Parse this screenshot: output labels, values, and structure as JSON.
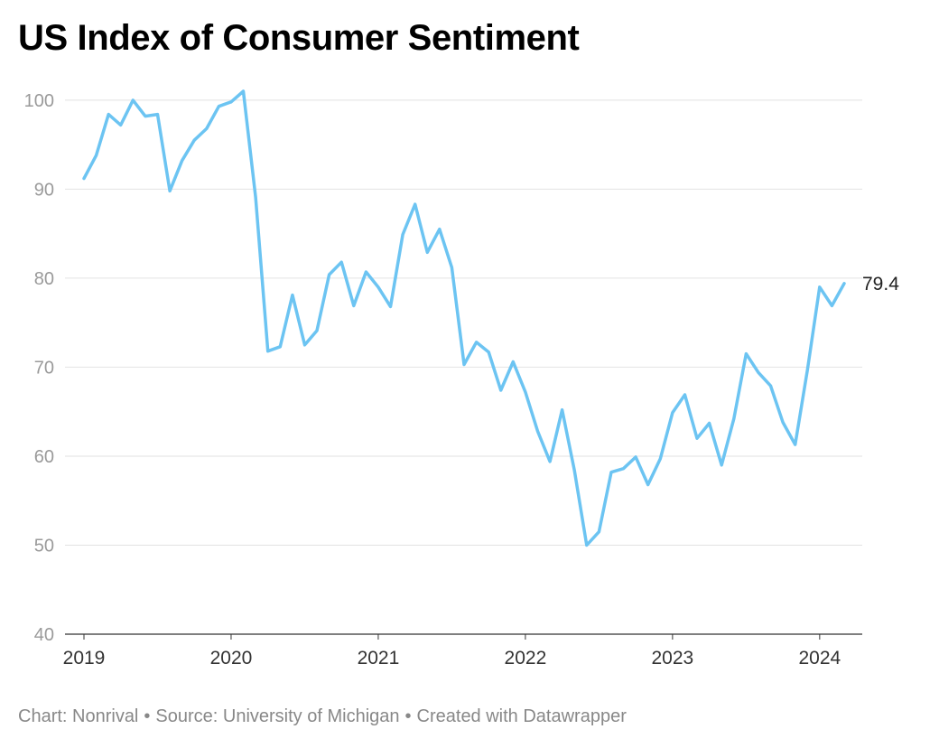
{
  "title": "US Index of Consumer Sentiment",
  "footer": {
    "chart_credit": "Chart: Nonrival",
    "source": "Source: University of Michigan",
    "created_with": "Created with Datawrapper",
    "separator": "•"
  },
  "colors": {
    "line": "#6cc4f2",
    "grid": "#e2e2e2",
    "tick_text": "#9a9a9a",
    "axis_text": "#333333",
    "end_label": "#222222"
  },
  "chart_data": {
    "type": "line",
    "title": "US Index of Consumer Sentiment",
    "xlabel": "",
    "ylabel": "",
    "ylim": [
      40,
      101
    ],
    "yticks": [
      100,
      90,
      80,
      70,
      60,
      50,
      40
    ],
    "xlim": [
      "2019-01",
      "2024-03"
    ],
    "xticks": [
      "2019",
      "2020",
      "2021",
      "2022",
      "2023",
      "2024"
    ],
    "grid": true,
    "legend": "none",
    "end_label": "79.4",
    "series": [
      {
        "x": [
          "2019-01",
          "2019-02",
          "2019-03",
          "2019-04",
          "2019-05",
          "2019-06",
          "2019-07",
          "2019-08",
          "2019-09",
          "2019-10",
          "2019-11",
          "2019-12",
          "2020-01",
          "2020-02",
          "2020-03",
          "2020-04",
          "2020-05",
          "2020-06",
          "2020-07",
          "2020-08",
          "2020-09",
          "2020-10",
          "2020-11",
          "2020-12",
          "2021-01",
          "2021-02",
          "2021-03",
          "2021-04",
          "2021-05",
          "2021-06",
          "2021-07",
          "2021-08",
          "2021-09",
          "2021-10",
          "2021-11",
          "2021-12",
          "2022-01",
          "2022-02",
          "2022-03",
          "2022-04",
          "2022-05",
          "2022-06",
          "2022-07",
          "2022-08",
          "2022-09",
          "2022-10",
          "2022-11",
          "2022-12",
          "2023-01",
          "2023-02",
          "2023-03",
          "2023-04",
          "2023-05",
          "2023-06",
          "2023-07",
          "2023-08",
          "2023-09",
          "2023-10",
          "2023-11",
          "2023-12",
          "2024-01",
          "2024-02",
          "2024-03"
        ],
        "values": [
          91.2,
          93.8,
          98.4,
          97.2,
          100.0,
          98.2,
          98.4,
          89.8,
          93.2,
          95.5,
          96.8,
          99.3,
          99.8,
          101.0,
          89.1,
          71.8,
          72.3,
          78.1,
          72.5,
          74.1,
          80.4,
          81.8,
          76.9,
          80.7,
          79.0,
          76.8,
          84.9,
          88.3,
          82.9,
          85.5,
          81.2,
          70.3,
          72.8,
          71.7,
          67.4,
          70.6,
          67.2,
          62.8,
          59.4,
          65.2,
          58.4,
          50.0,
          51.5,
          58.2,
          58.6,
          59.9,
          56.8,
          59.7,
          64.9,
          66.9,
          62.0,
          63.7,
          59.0,
          64.2,
          71.5,
          69.4,
          67.9,
          63.8,
          61.3,
          69.7,
          79.0,
          76.9,
          79.4
        ]
      }
    ]
  }
}
